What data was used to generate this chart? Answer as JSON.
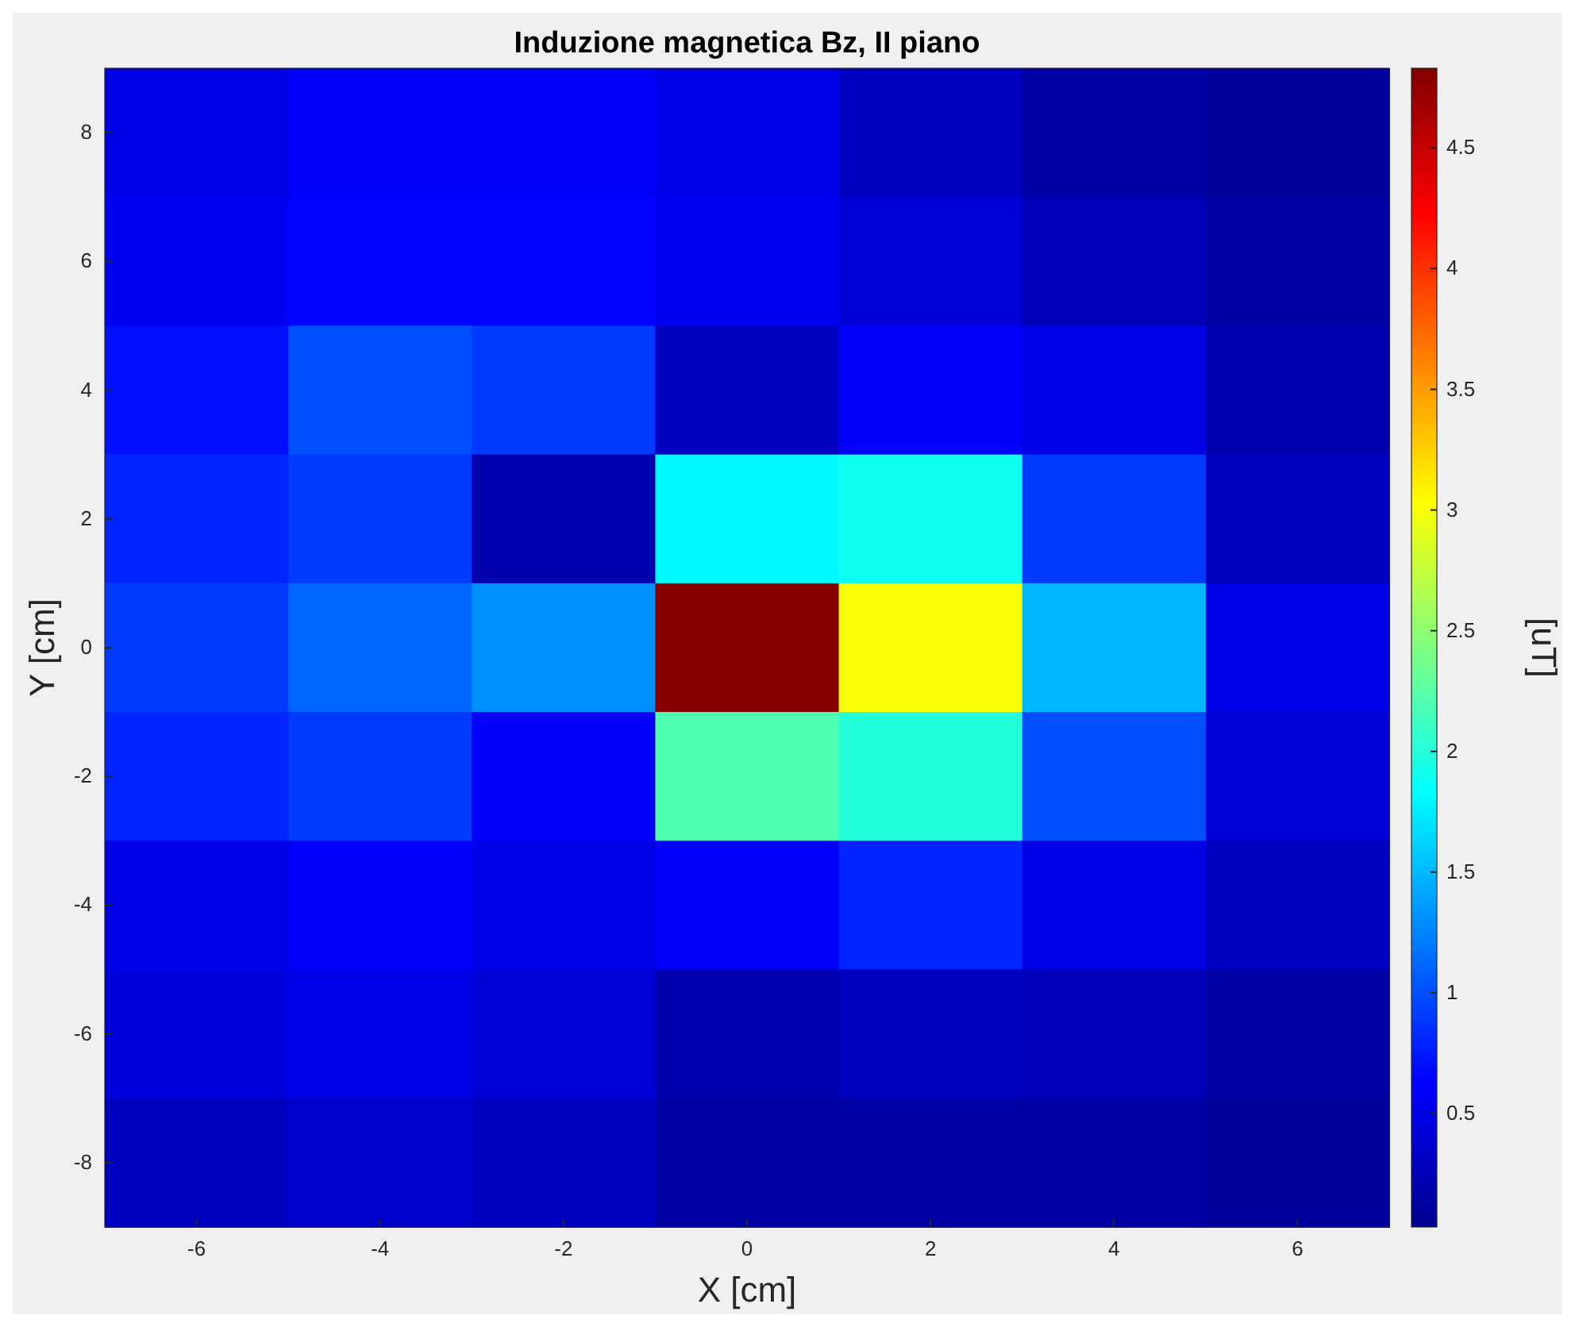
{
  "chart_data": {
    "type": "heatmap",
    "title": "Induzione magnetica Bz, II piano",
    "xlabel": "X [cm]",
    "ylabel": "Y [cm]",
    "clabel": "[uT]",
    "categories": [
      "-6",
      "-4",
      "-2",
      "0",
      "2",
      "4",
      "6"
    ],
    "y_categories": [
      "8",
      "6",
      "4",
      "2",
      "0",
      "-2",
      "-4",
      "-6",
      "-8"
    ],
    "clim": [
      0.03,
      4.83
    ],
    "cticks": [
      0.5,
      1,
      1.5,
      2,
      2.5,
      3,
      3.5,
      4,
      4.5
    ],
    "cells": [
      [
        0.5,
        0.6,
        0.6,
        0.5,
        0.3,
        0.15,
        0.1
      ],
      [
        0.55,
        0.65,
        0.65,
        0.55,
        0.4,
        0.25,
        0.15
      ],
      [
        0.7,
        1.0,
        0.9,
        0.3,
        0.6,
        0.5,
        0.2
      ],
      [
        0.8,
        0.9,
        0.2,
        1.8,
        1.9,
        0.9,
        0.3
      ],
      [
        0.9,
        1.1,
        1.3,
        4.8,
        3.0,
        1.5,
        0.5
      ],
      [
        0.8,
        0.9,
        0.6,
        2.2,
        2.0,
        1.0,
        0.4
      ],
      [
        0.5,
        0.6,
        0.5,
        0.6,
        0.8,
        0.5,
        0.3
      ],
      [
        0.45,
        0.5,
        0.4,
        0.2,
        0.3,
        0.25,
        0.15
      ],
      [
        0.3,
        0.35,
        0.3,
        0.15,
        0.15,
        0.15,
        0.1
      ]
    ]
  }
}
